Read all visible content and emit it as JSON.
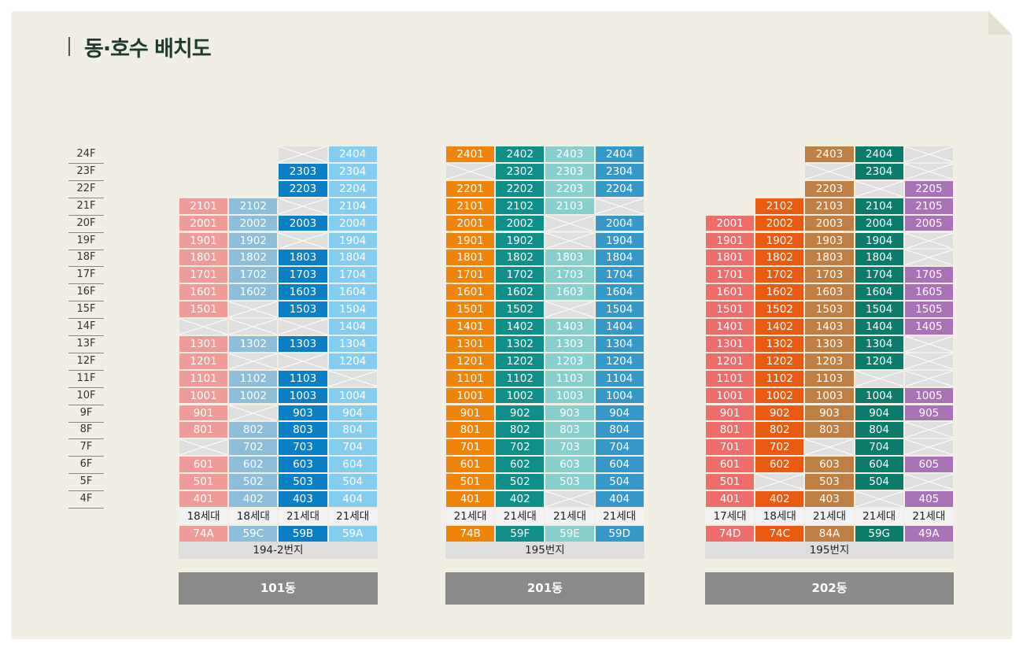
{
  "title": "동·호수 배치도",
  "floors": [
    "24F",
    "23F",
    "22F",
    "21F",
    "20F",
    "19F",
    "18F",
    "17F",
    "16F",
    "15F",
    "14F",
    "13F",
    "12F",
    "11F",
    "10F",
    "9F",
    "8F",
    "7F",
    "6F",
    "5F",
    "4F"
  ],
  "colors": {
    "74A": "#ef9c98",
    "59C": "#8dbdd8",
    "59B": "#0b7fc6",
    "59A": "#85cdf0",
    "74B": "#f0840a",
    "59F": "#0f8f88",
    "59E": "#86cfcd",
    "59D": "#3698c9",
    "74D": "#ec6d6a",
    "74C": "#ea5b11",
    "84A": "#c07f42",
    "59G": "#0b7b6b",
    "49A": "#a872b6",
    "empty": "#dfdfdf"
  },
  "buildings": [
    {
      "name": "101동",
      "address": "194-2번지",
      "columns": [
        {
          "type": "74A",
          "households": "18세대",
          "units": [
            "",
            "",
            "",
            "2101",
            "2001",
            "1901",
            "1801",
            "1701",
            "1601",
            "1501",
            "x",
            "1301",
            "1201",
            "1101",
            "1001",
            "901",
            "801",
            "x",
            "601",
            "501",
            "401"
          ]
        },
        {
          "type": "59C",
          "households": "18세대",
          "units": [
            "",
            "",
            "",
            "2102",
            "2002",
            "1902",
            "1802",
            "1702",
            "1602",
            "x",
            "x",
            "1302",
            "x",
            "1102",
            "1002",
            "x",
            "802",
            "702",
            "602",
            "502",
            "402"
          ]
        },
        {
          "type": "59B",
          "households": "21세대",
          "units": [
            "x",
            "2303",
            "2203",
            "x",
            "2003",
            "x",
            "1803",
            "1703",
            "1603",
            "1503",
            "x",
            "1303",
            "x",
            "1103",
            "1003",
            "903",
            "803",
            "703",
            "603",
            "503",
            "403"
          ]
        },
        {
          "type": "59A",
          "households": "21세대",
          "units": [
            "2404",
            "2304",
            "2204",
            "2104",
            "2004",
            "1904",
            "1804",
            "1704",
            "1604",
            "1504",
            "1404",
            "1304",
            "1204",
            "x",
            "1004",
            "904",
            "804",
            "704",
            "604",
            "504",
            "404"
          ]
        }
      ]
    },
    {
      "name": "201동",
      "address": "195번지",
      "columns": [
        {
          "type": "74B",
          "households": "21세대",
          "units": [
            "2401",
            "x",
            "2201",
            "2101",
            "2001",
            "1901",
            "1801",
            "1701",
            "1601",
            "1501",
            "1401",
            "1301",
            "1201",
            "1101",
            "1001",
            "901",
            "801",
            "701",
            "601",
            "501",
            "401"
          ]
        },
        {
          "type": "59F",
          "households": "21세대",
          "units": [
            "2402",
            "2302",
            "2202",
            "2102",
            "2002",
            "1902",
            "1802",
            "1702",
            "1602",
            "1502",
            "1402",
            "1302",
            "1202",
            "1102",
            "1002",
            "902",
            "802",
            "702",
            "602",
            "502",
            "402"
          ]
        },
        {
          "type": "59E",
          "households": "21세대",
          "units": [
            "2403",
            "2303",
            "2203",
            "2103",
            "x",
            "x",
            "1803",
            "1703",
            "1603",
            "x",
            "1403",
            "1303",
            "1203",
            "1103",
            "1003",
            "903",
            "803",
            "703",
            "603",
            "503",
            "x"
          ]
        },
        {
          "type": "59D",
          "households": "21세대",
          "units": [
            "2404",
            "2304",
            "2204",
            "x",
            "2004",
            "1904",
            "1804",
            "1704",
            "1604",
            "1504",
            "1404",
            "1304",
            "1204",
            "1104",
            "1004",
            "904",
            "804",
            "704",
            "604",
            "504",
            "404"
          ]
        }
      ]
    },
    {
      "name": "202동",
      "address": "195번지",
      "columns": [
        {
          "type": "74D",
          "households": "17세대",
          "units": [
            "",
            "",
            "",
            "",
            "2001",
            "1901",
            "1801",
            "1701",
            "1601",
            "1501",
            "1401",
            "1301",
            "1201",
            "1101",
            "1001",
            "901",
            "801",
            "701",
            "601",
            "501",
            "401"
          ]
        },
        {
          "type": "74C",
          "households": "18세대",
          "units": [
            "",
            "",
            "",
            "2102",
            "2002",
            "1902",
            "1802",
            "1702",
            "1602",
            "1502",
            "1402",
            "1302",
            "1202",
            "1102",
            "1002",
            "902",
            "802",
            "702",
            "602",
            "x",
            "402"
          ]
        },
        {
          "type": "84A",
          "households": "21세대",
          "units": [
            "2403",
            "x",
            "2203",
            "2103",
            "2003",
            "1903",
            "1803",
            "1703",
            "1603",
            "1503",
            "1403",
            "1303",
            "1203",
            "1103",
            "1003",
            "903",
            "803",
            "x",
            "603",
            "503",
            "403"
          ]
        },
        {
          "type": "59G",
          "households": "21세대",
          "units": [
            "2404",
            "2304",
            "x",
            "2104",
            "2004",
            "1904",
            "1804",
            "1704",
            "1604",
            "1504",
            "1404",
            "1304",
            "1204",
            "x",
            "1004",
            "904",
            "804",
            "704",
            "604",
            "504",
            "x"
          ]
        },
        {
          "type": "49A",
          "households": "21세대",
          "units": [
            "x",
            "x",
            "2205",
            "2105",
            "2005",
            "x",
            "x",
            "1705",
            "1605",
            "1505",
            "1405",
            "x",
            "x",
            "x",
            "1005",
            "905",
            "x",
            "x",
            "605",
            "x",
            "405"
          ]
        }
      ]
    }
  ]
}
